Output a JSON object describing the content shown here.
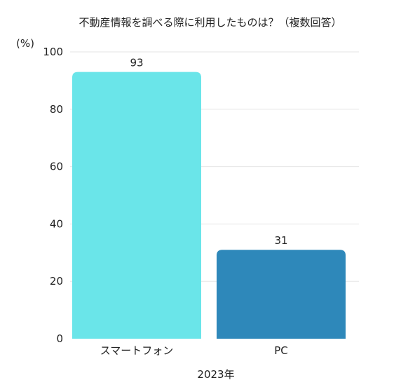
{
  "chart_data": {
    "type": "bar",
    "title": "不動産情報を調べる際に利用したものは？（複数回答）",
    "unit_label": "(%)",
    "xlabel": "2023年",
    "ylabel": "",
    "categories": [
      "スマートフォン",
      "PC"
    ],
    "values": [
      93,
      31
    ],
    "data_labels": [
      "93",
      "31"
    ],
    "ylim": [
      0,
      100
    ],
    "yticks": [
      "0",
      "20",
      "40",
      "60",
      "80",
      "100"
    ],
    "grid": true,
    "legend": "none",
    "colors": [
      "#6ae5e9",
      "#2e88ba"
    ]
  }
}
